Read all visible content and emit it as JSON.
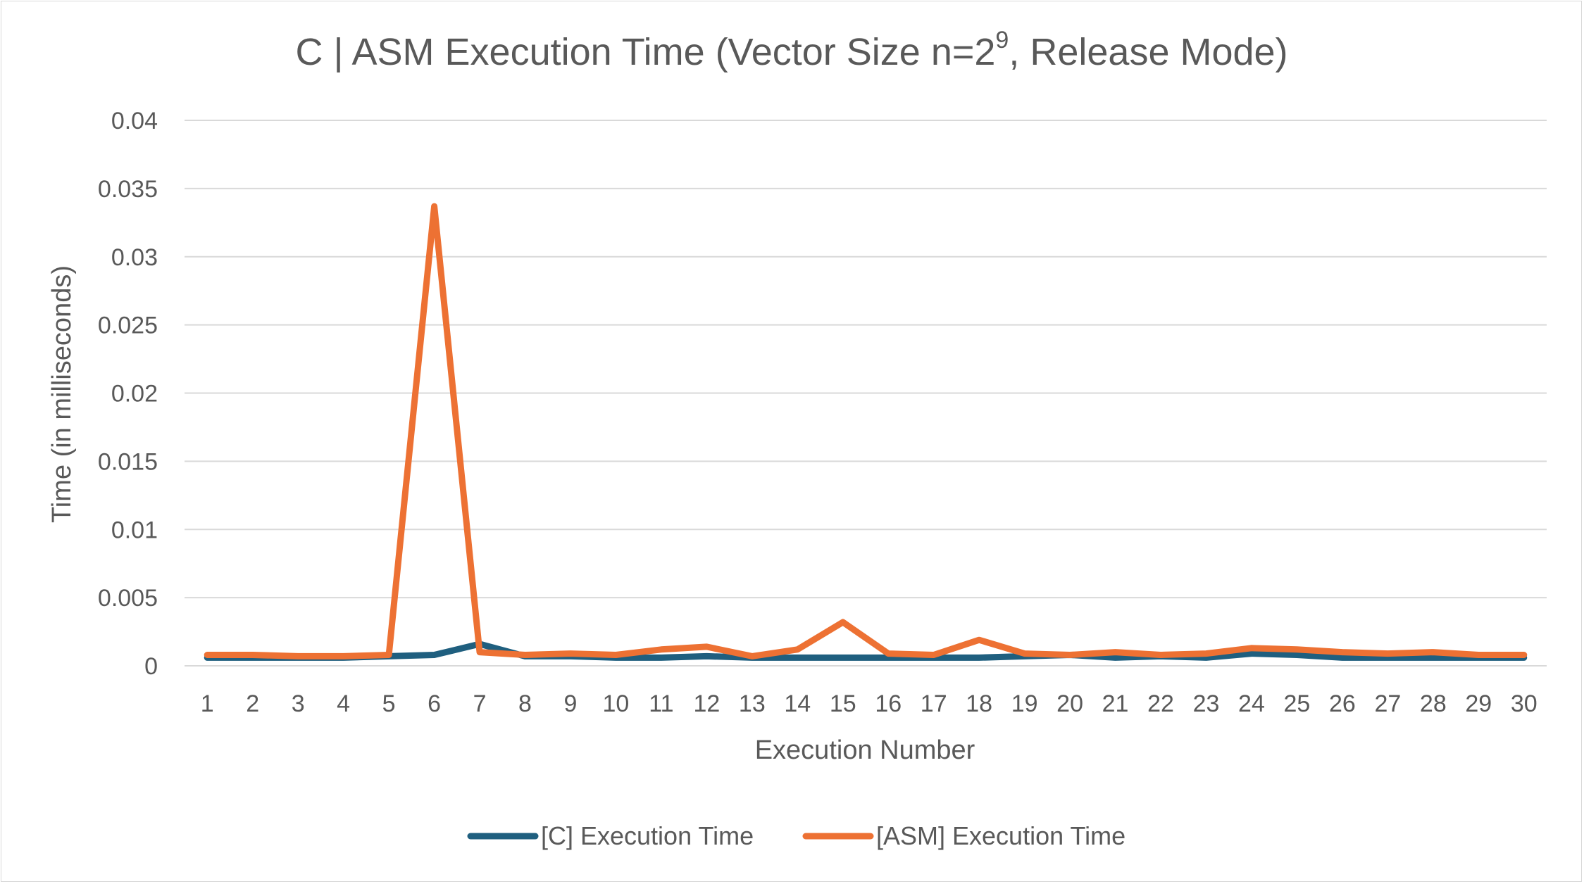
{
  "chart_data": {
    "type": "line",
    "title": "C | ASM Execution Time (Vector Size n=2",
    "title_sup": "9",
    "title_suffix": ", Release Mode)",
    "xlabel": "Execution Number",
    "ylabel": "Time (in milliseconds)",
    "ylim": [
      0,
      0.04
    ],
    "yticks": [
      "0",
      "0.005",
      "0.01",
      "0.015",
      "0.02",
      "0.025",
      "0.03",
      "0.035",
      "0.04"
    ],
    "categories": [
      "1",
      "2",
      "3",
      "4",
      "5",
      "6",
      "7",
      "8",
      "9",
      "10",
      "11",
      "12",
      "13",
      "14",
      "15",
      "16",
      "17",
      "18",
      "19",
      "20",
      "21",
      "22",
      "23",
      "24",
      "25",
      "26",
      "27",
      "28",
      "29",
      "30"
    ],
    "grid": true,
    "legend_position": "bottom",
    "series": [
      {
        "name": "[C] Execution Time",
        "color": "#1f5f7f",
        "values": [
          0.0006,
          0.0006,
          0.0006,
          0.0006,
          0.0007,
          0.0008,
          0.0016,
          0.0007,
          0.0007,
          0.0006,
          0.0006,
          0.0007,
          0.0006,
          0.0006,
          0.0006,
          0.0006,
          0.0006,
          0.0006,
          0.0007,
          0.0008,
          0.0006,
          0.0007,
          0.0006,
          0.0009,
          0.0008,
          0.0006,
          0.0006,
          0.0006,
          0.0006,
          0.0006
        ]
      },
      {
        "name": "[ASM] Execution Time",
        "color": "#ed7133",
        "values": [
          0.0008,
          0.0008,
          0.0007,
          0.0007,
          0.0008,
          0.0337,
          0.001,
          0.0008,
          0.0009,
          0.0008,
          0.0012,
          0.0014,
          0.0007,
          0.0012,
          0.0032,
          0.0009,
          0.0008,
          0.0019,
          0.0009,
          0.0008,
          0.001,
          0.0008,
          0.0009,
          0.0013,
          0.0012,
          0.001,
          0.0009,
          0.001,
          0.0008,
          0.0008
        ]
      }
    ]
  }
}
